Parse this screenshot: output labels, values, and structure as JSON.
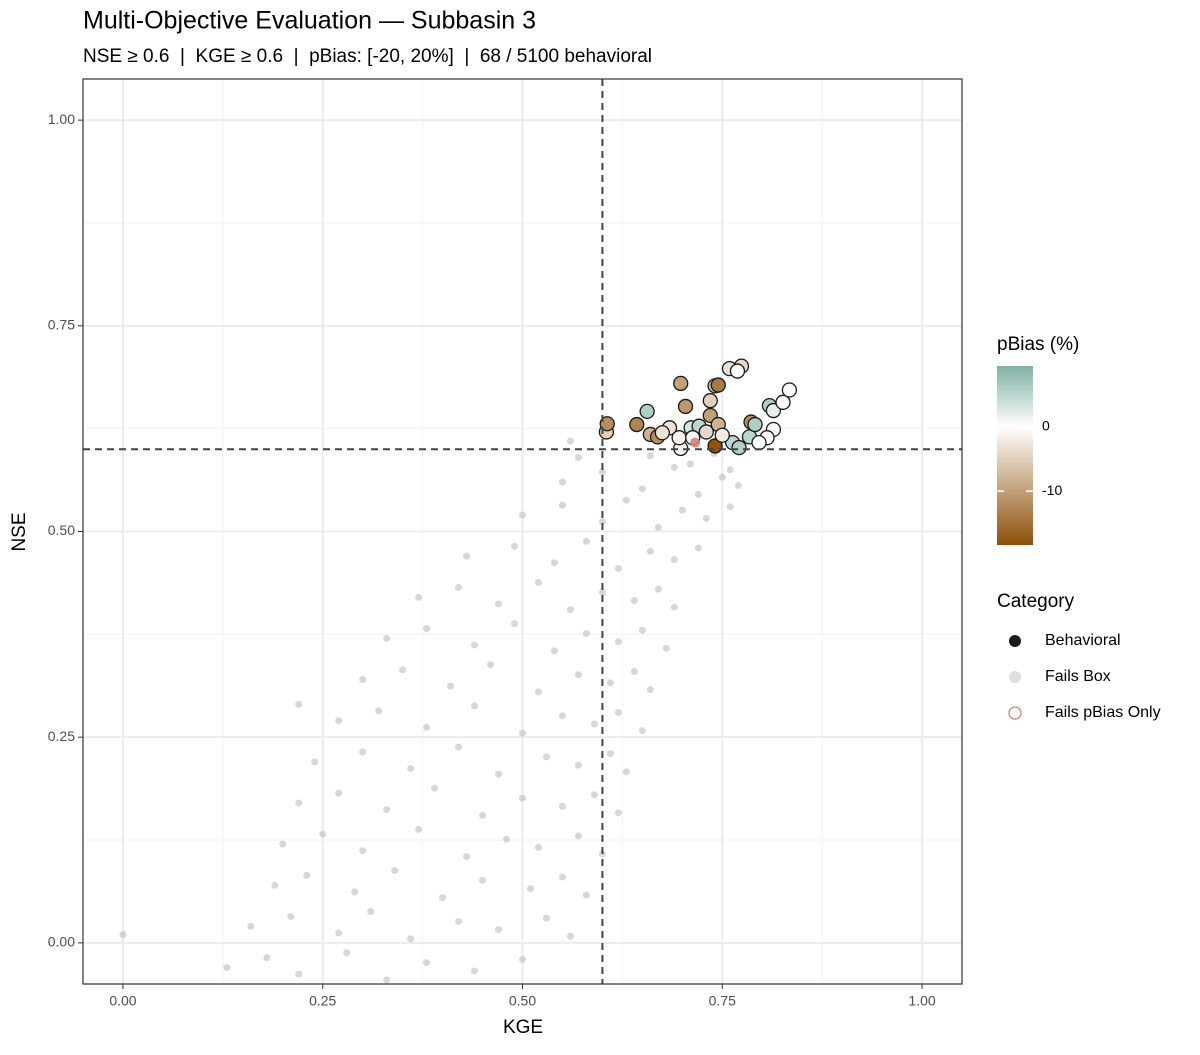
{
  "chart_data": {
    "type": "scatter",
    "title": "Multi-Objective Evaluation — Subbasin 3",
    "subtitle": "NSE ≥ 0.6  |  KGE ≥ 0.6  |  pBias: [-20, 20%]  |  68 / 5100 behavioral",
    "x_label": "KGE",
    "y_label": "NSE",
    "xlim": [
      -0.05,
      1.05
    ],
    "ylim": [
      -0.05,
      1.05
    ],
    "xticks": [
      {
        "value": 0,
        "label": "0.00"
      },
      {
        "value": 0.25,
        "label": "0.25"
      },
      {
        "value": 0.5,
        "label": "0.50"
      },
      {
        "value": 0.75,
        "label": "0.75"
      },
      {
        "value": 1,
        "label": "1.00"
      }
    ],
    "yticks": [
      {
        "value": 0,
        "label": "0.00"
      },
      {
        "value": 0.25,
        "label": "0.25"
      },
      {
        "value": 0.5,
        "label": "0.50"
      },
      {
        "value": 0.75,
        "label": "0.75"
      },
      {
        "value": 1,
        "label": "1.00"
      }
    ],
    "grid": true,
    "vlines": [
      0.6
    ],
    "hlines": [
      0.6
    ],
    "legend": "right",
    "legend_title": "Category",
    "colorbar": {
      "title": "pBias (%)",
      "lim": [
        -18.4,
        9.5
      ],
      "ticks": [
        -10,
        0
      ],
      "colors": [
        "#8c510a",
        "#ffffff",
        "#80b1a6"
      ]
    },
    "series": [
      {
        "name": "Fails Box",
        "color": "#bdbdbd",
        "x": [
          0.13,
          0.18,
          0.22,
          0.28,
          0.33,
          0.38,
          0.44,
          0.5,
          0.16,
          0.21,
          0.27,
          0.31,
          0.36,
          0.42,
          0.47,
          0.53,
          0.56,
          0.19,
          0.23,
          0.29,
          0.34,
          0.4,
          0.45,
          0.51,
          0.55,
          0.58,
          0.2,
          0.25,
          0.3,
          0.37,
          0.43,
          0.48,
          0.52,
          0.57,
          0.6,
          0.22,
          0.27,
          0.33,
          0.39,
          0.45,
          0.5,
          0.55,
          0.59,
          0.62,
          0.24,
          0.3,
          0.36,
          0.42,
          0.47,
          0.53,
          0.57,
          0.61,
          0.63,
          0.27,
          0.32,
          0.38,
          0.44,
          0.5,
          0.55,
          0.59,
          0.62,
          0.65,
          0.3,
          0.35,
          0.41,
          0.46,
          0.52,
          0.57,
          0.61,
          0.64,
          0.66,
          0.33,
          0.38,
          0.44,
          0.49,
          0.54,
          0.58,
          0.62,
          0.65,
          0.68,
          0.37,
          0.42,
          0.47,
          0.52,
          0.56,
          0.6,
          0.64,
          0.67,
          0.69,
          0.43,
          0.49,
          0.54,
          0.58,
          0.62,
          0.66,
          0.69,
          0.72,
          0.5,
          0.55,
          0.6,
          0.63,
          0.67,
          0.7,
          0.73,
          0.76,
          0.55,
          0.6,
          0.65,
          0.69,
          0.72,
          0.75,
          0.77,
          0.57,
          0.66,
          0.71,
          0.74,
          0.76,
          0.0,
          0.22,
          0.56
        ],
        "y": [
          -0.03,
          -0.018,
          -0.038,
          -0.012,
          -0.045,
          -0.024,
          -0.034,
          -0.02,
          0.02,
          0.032,
          0.012,
          0.038,
          0.005,
          0.026,
          0.016,
          0.03,
          0.008,
          0.07,
          0.082,
          0.062,
          0.088,
          0.055,
          0.076,
          0.066,
          0.08,
          0.058,
          0.12,
          0.132,
          0.112,
          0.138,
          0.105,
          0.126,
          0.116,
          0.13,
          0.108,
          0.17,
          0.182,
          0.162,
          0.188,
          0.155,
          0.176,
          0.166,
          0.18,
          0.158,
          0.22,
          0.232,
          0.212,
          0.238,
          0.205,
          0.226,
          0.216,
          0.23,
          0.208,
          0.27,
          0.282,
          0.262,
          0.288,
          0.255,
          0.276,
          0.266,
          0.28,
          0.258,
          0.32,
          0.332,
          0.312,
          0.338,
          0.305,
          0.326,
          0.316,
          0.33,
          0.308,
          0.37,
          0.382,
          0.362,
          0.388,
          0.355,
          0.376,
          0.366,
          0.38,
          0.358,
          0.42,
          0.432,
          0.412,
          0.438,
          0.405,
          0.426,
          0.416,
          0.43,
          0.408,
          0.47,
          0.482,
          0.462,
          0.488,
          0.455,
          0.476,
          0.466,
          0.48,
          0.52,
          0.532,
          0.512,
          0.538,
          0.505,
          0.526,
          0.516,
          0.53,
          0.56,
          0.572,
          0.552,
          0.578,
          0.545,
          0.566,
          0.556,
          0.59,
          0.592,
          0.582,
          0.595,
          0.575,
          0.01,
          0.29,
          0.61
        ]
      },
      {
        "name": "Behavioral",
        "color": "#1a1a1a",
        "x": [
          0.605,
          0.606,
          0.643,
          0.656,
          0.66,
          0.669,
          0.698,
          0.704,
          0.684,
          0.698,
          0.696,
          0.711,
          0.721,
          0.73,
          0.741,
          0.735,
          0.741,
          0.745,
          0.735,
          0.745,
          0.759,
          0.774,
          0.769,
          0.786,
          0.763,
          0.771,
          0.784,
          0.791,
          0.809,
          0.814,
          0.814,
          0.806,
          0.826,
          0.834,
          0.796,
          0.75,
          0.713,
          0.675
        ],
        "y": [
          0.621,
          0.631,
          0.63,
          0.646,
          0.618,
          0.615,
          0.68,
          0.652,
          0.626,
          0.601,
          0.614,
          0.626,
          0.628,
          0.621,
          0.604,
          0.659,
          0.677,
          0.678,
          0.641,
          0.63,
          0.698,
          0.701,
          0.695,
          0.633,
          0.608,
          0.602,
          0.615,
          0.63,
          0.653,
          0.647,
          0.624,
          0.614,
          0.657,
          0.672,
          0.608,
          0.617,
          0.614,
          0.62
        ],
        "pbias": [
          -5,
          -12,
          -13,
          6,
          -8,
          -12,
          -10,
          -11,
          -3,
          -1,
          -1,
          3,
          5,
          -4,
          -18,
          -5,
          7,
          -14,
          -10,
          -8,
          -3,
          -4,
          0,
          -12,
          5,
          6,
          5,
          6,
          6,
          2,
          0,
          0,
          0,
          0,
          0,
          -2,
          1,
          -3
        ]
      },
      {
        "name": "Fails pBias Only",
        "color": "#d98080",
        "x": [
          0.716
        ],
        "y": [
          0.608
        ]
      }
    ]
  }
}
